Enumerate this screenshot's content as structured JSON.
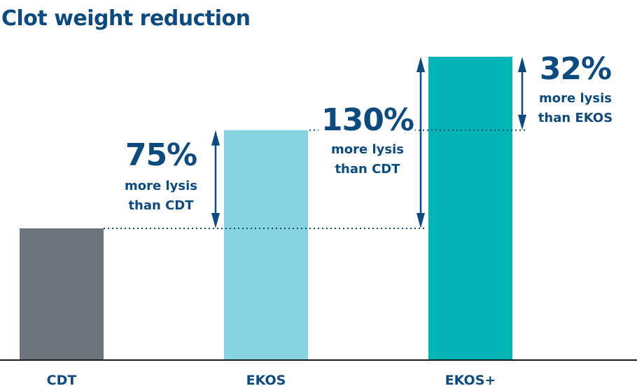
{
  "chart_data": {
    "type": "bar",
    "title": "Clot weight reduction",
    "xlabel": "",
    "ylabel": "",
    "categories": [
      "CDT",
      "EKOS",
      "EKOS+"
    ],
    "values": [
      1.0,
      1.75,
      2.31
    ],
    "colors": [
      "#6b737b",
      "#87d3e0",
      "#00b3b5"
    ],
    "grid": false,
    "annotations": [
      {
        "big": "75%",
        "line1": "more lysis",
        "line2": "than CDT",
        "from": "CDT",
        "to": "EKOS"
      },
      {
        "big": "130%",
        "line1": "more lysis",
        "line2": "than CDT",
        "from": "CDT",
        "to": "EKOS+"
      },
      {
        "big": "32%",
        "line1": "more lysis",
        "line2": "than EKOS",
        "from": "EKOS",
        "to": "EKOS+"
      }
    ],
    "annotation_color": "#0d4a80"
  }
}
